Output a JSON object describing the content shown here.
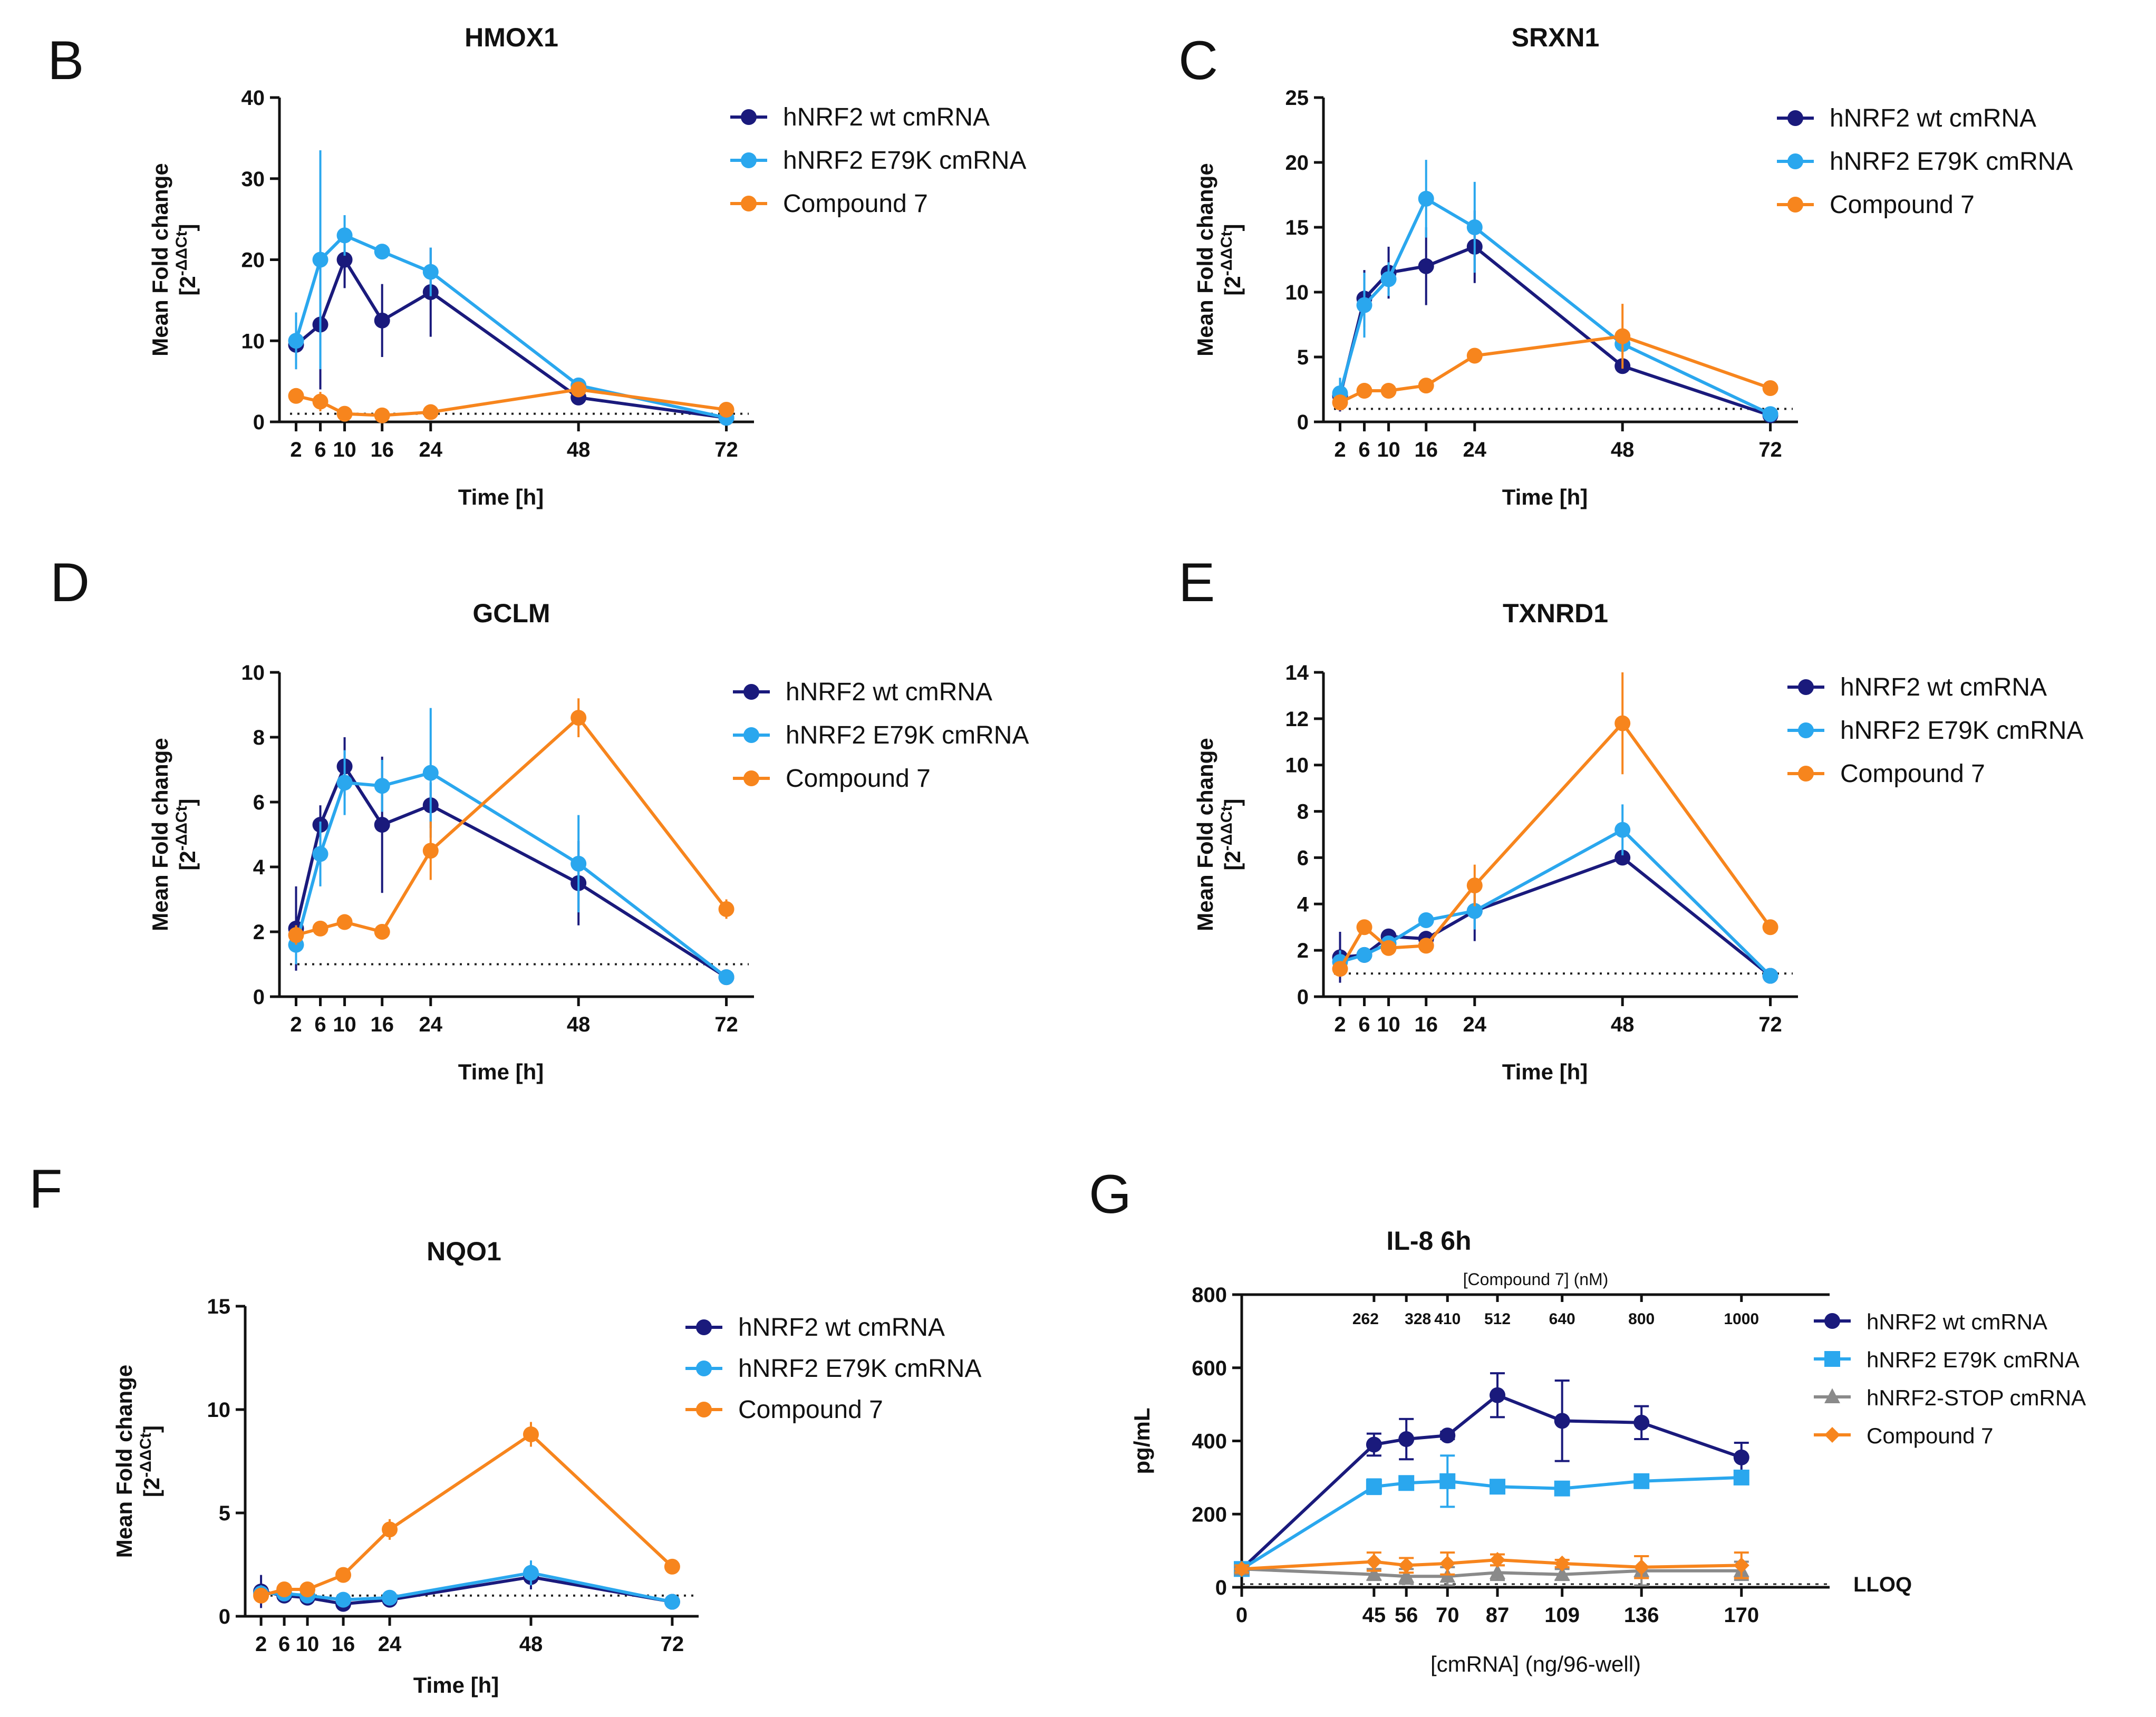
{
  "colors": {
    "wt": "#1a1a7c",
    "e79k": "#2aa7ee",
    "stop": "#8a8a8a",
    "compound": "#f7851d"
  },
  "chart_data": [
    {
      "panel": "B",
      "type": "line",
      "title": "HMOX1",
      "xlabel": "Time [h]",
      "ylabel": "Mean Fold change",
      "ylabel_unit": "[2",
      "ylabel_exp": "-ΔΔCt",
      "ylabel_close": "]",
      "x": [
        2,
        6,
        10,
        16,
        24,
        48,
        72
      ],
      "xticks": [
        "2",
        "6",
        "10",
        "16",
        "24",
        "48",
        "72"
      ],
      "ylim": [
        0,
        40
      ],
      "yticks": [
        "0",
        "10",
        "20",
        "30",
        "40"
      ],
      "baseline": 1,
      "series": [
        {
          "name": "hNRF2 wt cmRNA",
          "color_key": "wt",
          "marker": "circle",
          "values": [
            9.5,
            12,
            20,
            12.5,
            16,
            3,
            0.5
          ],
          "err": [
            3,
            8,
            3.5,
            4.5,
            5.5,
            0.5,
            0.3
          ]
        },
        {
          "name": "hNRF2 E79K cmRNA",
          "color_key": "e79k",
          "marker": "circle",
          "values": [
            10,
            20,
            23,
            21,
            18.5,
            4.5,
            0.5
          ],
          "err": [
            3.5,
            13.5,
            2.5,
            0.8,
            3,
            0.7,
            0.3
          ]
        },
        {
          "name": "Compound 7",
          "color_key": "compound",
          "marker": "circle",
          "values": [
            3.2,
            2.5,
            1,
            0.8,
            1.2,
            4,
            1.5
          ],
          "err": [
            0.8,
            1.2,
            0.3,
            0.3,
            0.3,
            0.5,
            0.3
          ]
        }
      ]
    },
    {
      "panel": "C",
      "type": "line",
      "title": "SRXN1",
      "xlabel": "Time [h]",
      "ylabel": "Mean Fold change",
      "ylabel_unit": "[2",
      "ylabel_exp": "-ΔΔCt",
      "ylabel_close": "]",
      "x": [
        2,
        6,
        10,
        16,
        24,
        48,
        72
      ],
      "xticks": [
        "2",
        "6",
        "10",
        "16",
        "24",
        "48",
        "72"
      ],
      "ylim": [
        0,
        25
      ],
      "yticks": [
        "0",
        "5",
        "10",
        "15",
        "20",
        "25"
      ],
      "baseline": 1,
      "series": [
        {
          "name": "hNRF2 wt cmRNA",
          "color_key": "wt",
          "marker": "circle",
          "values": [
            2,
            9.5,
            11.5,
            12,
            13.5,
            4.3,
            0.5
          ],
          "err": [
            1.2,
            2.2,
            2,
            3,
            2.8,
            0.4,
            0.2
          ]
        },
        {
          "name": "hNRF2 E79K cmRNA",
          "color_key": "e79k",
          "marker": "circle",
          "values": [
            2.2,
            9,
            11,
            17.2,
            15,
            6,
            0.6
          ],
          "err": [
            1.2,
            2.5,
            1.3,
            3,
            3.5,
            0.8,
            0.2
          ]
        },
        {
          "name": "Compound 7",
          "color_key": "compound",
          "marker": "circle",
          "values": [
            1.5,
            2.4,
            2.4,
            2.8,
            5.1,
            6.6,
            2.6
          ],
          "err": [
            0.6,
            0.6,
            0.3,
            0.3,
            0.3,
            2.5,
            0.3
          ]
        }
      ]
    },
    {
      "panel": "D",
      "type": "line",
      "title": "GCLM",
      "xlabel": "Time [h]",
      "ylabel": "Mean Fold change",
      "ylabel_unit": "[2",
      "ylabel_exp": "-ΔΔCt",
      "ylabel_close": "]",
      "x": [
        2,
        6,
        10,
        16,
        24,
        48,
        72
      ],
      "xticks": [
        "2",
        "6",
        "10",
        "16",
        "24",
        "48",
        "72"
      ],
      "ylim": [
        0,
        10
      ],
      "yticks": [
        "0",
        "2",
        "4",
        "6",
        "8",
        "10"
      ],
      "baseline": 1,
      "series": [
        {
          "name": "hNRF2 wt cmRNA",
          "color_key": "wt",
          "marker": "circle",
          "values": [
            2.1,
            5.3,
            7.1,
            5.3,
            5.9,
            3.5,
            0.6
          ],
          "err": [
            1.3,
            0.6,
            0.9,
            2.1,
            0.7,
            1.3,
            0.1
          ]
        },
        {
          "name": "hNRF2 E79K cmRNA",
          "color_key": "e79k",
          "marker": "circle",
          "values": [
            1.6,
            4.4,
            6.6,
            6.5,
            6.9,
            4.1,
            0.6
          ],
          "err": [
            0.6,
            1,
            1,
            0.8,
            2,
            1.5,
            0.1
          ]
        },
        {
          "name": "Compound 7",
          "color_key": "compound",
          "marker": "circle",
          "values": [
            1.9,
            2.1,
            2.3,
            2,
            4.5,
            8.6,
            2.7
          ],
          "err": [
            0.3,
            0.2,
            0.2,
            0.2,
            0.9,
            0.6,
            0.3
          ]
        }
      ]
    },
    {
      "panel": "E",
      "type": "line",
      "title": "TXNRD1",
      "xlabel": "Time [h]",
      "ylabel": "Mean Fold change",
      "ylabel_unit": "[2",
      "ylabel_exp": "-ΔΔCt",
      "ylabel_close": "]",
      "x": [
        2,
        6,
        10,
        16,
        24,
        48,
        72
      ],
      "xticks": [
        "2",
        "6",
        "10",
        "16",
        "24",
        "48",
        "72"
      ],
      "ylim": [
        0,
        14
      ],
      "yticks": [
        "0",
        "2",
        "4",
        "6",
        "8",
        "10",
        "12",
        "14"
      ],
      "baseline": 1,
      "series": [
        {
          "name": "hNRF2 wt cmRNA",
          "color_key": "wt",
          "marker": "circle",
          "values": [
            1.7,
            1.8,
            2.6,
            2.5,
            3.7,
            6,
            0.9
          ],
          "err": [
            1.1,
            0.2,
            0.3,
            0.3,
            1.3,
            0.2,
            0.1
          ]
        },
        {
          "name": "hNRF2 E79K cmRNA",
          "color_key": "e79k",
          "marker": "circle",
          "values": [
            1.5,
            1.8,
            2.3,
            3.3,
            3.7,
            7.2,
            0.9
          ],
          "err": [
            0.5,
            0.3,
            0.3,
            0.3,
            0.8,
            1.1,
            0.1
          ]
        },
        {
          "name": "Compound 7",
          "color_key": "compound",
          "marker": "circle",
          "values": [
            1.2,
            3,
            2.1,
            2.2,
            4.8,
            11.8,
            3
          ],
          "err": [
            0.3,
            0.2,
            0.2,
            0.2,
            0.9,
            2.2,
            0.2
          ]
        }
      ]
    },
    {
      "panel": "F",
      "type": "line",
      "title": "NQO1",
      "xlabel": "Time [h]",
      "ylabel": "Mean Fold change",
      "ylabel_unit": "[2",
      "ylabel_exp": "-ΔΔCt",
      "ylabel_close": "]",
      "x": [
        2,
        6,
        10,
        16,
        24,
        48,
        72
      ],
      "xticks": [
        "2",
        "6",
        "10",
        "16",
        "24",
        "48",
        "72"
      ],
      "ylim": [
        0,
        15
      ],
      "yticks": [
        "0",
        "5",
        "10",
        "15"
      ],
      "baseline": 1,
      "series": [
        {
          "name": "hNRF2 wt cmRNA",
          "color_key": "wt",
          "marker": "circle",
          "values": [
            1.2,
            1,
            0.9,
            0.6,
            0.8,
            1.9,
            0.7
          ],
          "err": [
            0.8,
            0.3,
            0.2,
            0.2,
            0.2,
            0.6,
            0.1
          ]
        },
        {
          "name": "hNRF2 E79K cmRNA",
          "color_key": "e79k",
          "marker": "circle",
          "values": [
            1.1,
            1.1,
            1,
            0.8,
            0.9,
            2.1,
            0.7
          ],
          "err": [
            0.4,
            0.3,
            0.2,
            0.2,
            0.2,
            0.6,
            0.1
          ]
        },
        {
          "name": "Compound 7",
          "color_key": "compound",
          "marker": "circle",
          "values": [
            1,
            1.3,
            1.3,
            2,
            4.2,
            8.8,
            2.4
          ],
          "err": [
            0.3,
            0.2,
            0.2,
            0.2,
            0.5,
            0.6,
            0.2
          ]
        }
      ]
    },
    {
      "panel": "G",
      "type": "line",
      "title": "IL-8 6h",
      "xlabel": "[cmRNA] (ng/96-well)",
      "ylabel": "pg/mL",
      "x": [
        0,
        45,
        56,
        70,
        87,
        109,
        136,
        170
      ],
      "xticks": [
        "0",
        "45",
        "56",
        "70",
        "87",
        "109",
        "136",
        "170"
      ],
      "xlim": [
        0,
        200
      ],
      "ylim": [
        0,
        800
      ],
      "yticks": [
        "0",
        "200",
        "400",
        "600",
        "800"
      ],
      "top_axis_label": "[Compound 7] (nM)",
      "top_ticks": [
        "262",
        "328",
        "410",
        "512",
        "640",
        "800",
        "1000"
      ],
      "lloq_label": "LLOQ",
      "series": [
        {
          "name": "hNRF2 wt cmRNA",
          "color_key": "wt",
          "marker": "circle",
          "values": [
            50,
            390,
            405,
            415,
            525,
            455,
            450,
            355
          ],
          "err": [
            15,
            30,
            55,
            10,
            60,
            110,
            45,
            40
          ]
        },
        {
          "name": "hNRF2 E79K cmRNA",
          "color_key": "e79k",
          "marker": "square",
          "values": [
            50,
            275,
            285,
            290,
            275,
            270,
            290,
            300
          ],
          "err": [
            10,
            20,
            15,
            70,
            10,
            10,
            10,
            15
          ]
        },
        {
          "name": "hNRF2-STOP cmRNA",
          "color_key": "stop",
          "marker": "triangle",
          "values": [
            50,
            35,
            30,
            30,
            40,
            35,
            45,
            45
          ],
          "err": [
            5,
            15,
            20,
            25,
            20,
            15,
            40,
            25
          ]
        },
        {
          "name": "Compound 7",
          "color_key": "compound",
          "marker": "diamond",
          "values": [
            50,
            70,
            60,
            65,
            75,
            65,
            55,
            60
          ],
          "err": [
            10,
            25,
            20,
            30,
            15,
            10,
            30,
            35
          ]
        }
      ]
    }
  ]
}
